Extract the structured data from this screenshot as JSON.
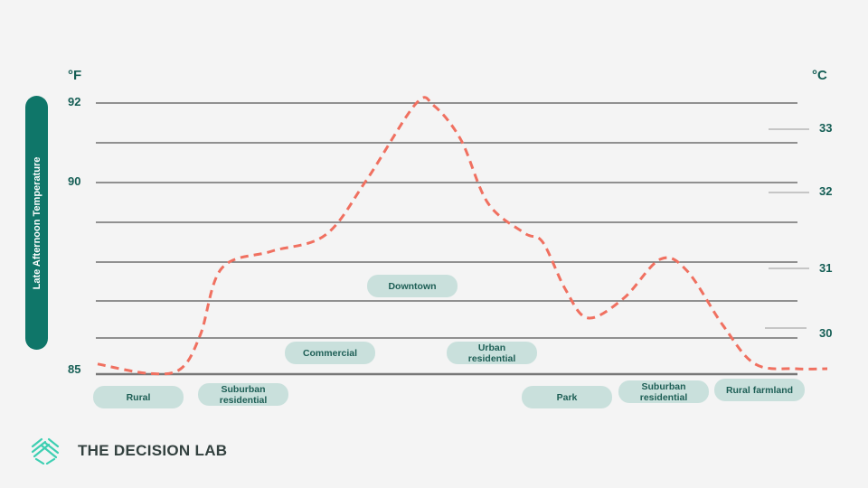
{
  "chart_data": {
    "type": "line",
    "ylabel": "Late Afternoon Temperature",
    "y_unit_left": "°F",
    "y_unit_right": "°C",
    "ylim": [
      85,
      92
    ],
    "left_ticks": [
      "92",
      "90",
      "85"
    ],
    "right_ticks": [
      "33",
      "32",
      "31",
      "30"
    ],
    "grid": true,
    "line_color": "#f07060",
    "line_style": "dashed",
    "series": [
      {
        "points": [
          [
            0,
            85.28
          ],
          [
            7,
            85.02
          ],
          [
            11.4,
            85.15
          ],
          [
            14.1,
            86.1
          ],
          [
            17,
            87.84
          ],
          [
            23.8,
            88.27
          ],
          [
            31.2,
            88.68
          ],
          [
            36.8,
            90.05
          ],
          [
            43.6,
            91.98
          ],
          [
            46.1,
            91.93
          ],
          [
            49.8,
            91.07
          ],
          [
            53.5,
            89.48
          ],
          [
            58.5,
            88.73
          ],
          [
            61,
            88.5
          ],
          [
            64.1,
            87.3
          ],
          [
            67.2,
            86.54
          ],
          [
            72.1,
            87.07
          ],
          [
            77.1,
            88.07
          ],
          [
            80.8,
            87.77
          ],
          [
            85.7,
            86.34
          ],
          [
            90.1,
            85.28
          ],
          [
            95.7,
            85.15
          ],
          [
            100,
            85.15
          ]
        ]
      }
    ],
    "zones": [
      "Rural",
      "Suburban residential",
      "Commercial",
      "Downtown",
      "Urban residential",
      "Park",
      "Suburban residential",
      "Rural farmland"
    ]
  },
  "brand": {
    "name": "THE DECISION LAB",
    "color": "#3ecfb2"
  },
  "colors": {
    "accent": "#0f7669",
    "pill": "#c9e0dc",
    "text": "#155e55"
  }
}
